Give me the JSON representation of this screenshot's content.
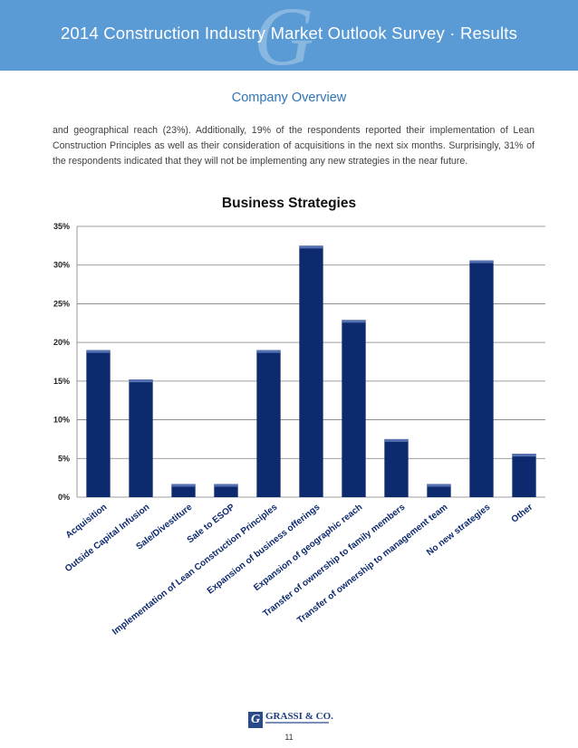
{
  "header": {
    "title": "2014 Construction Industry Market Outlook Survey · Results",
    "watermark": "G"
  },
  "section_title": "Company Overview",
  "paragraph": "and geographical reach (23%).  Additionally, 19% of the respondents reported their implementation of Lean Construction Principles as well as their consideration of acquisitions in the next six months. Surprisingly, 31% of the respondents indicated that they will not be implementing any new strategies in the near future.",
  "chart_data": {
    "type": "bar",
    "title": "Business Strategies",
    "categories": [
      "Acquisition",
      "Outside Capital Infusion",
      "Sale/Divestiture",
      "Sale to ESOP",
      "Implementation of Lean Construction Principles",
      "Expansion of business offerings",
      "Expansion of geographic reach",
      "Transfer of ownership to family members",
      "Transfer of ownership to management team",
      "No new strategies",
      "Other"
    ],
    "values": [
      19,
      15.2,
      1.7,
      1.7,
      19,
      32.5,
      22.9,
      7.5,
      1.7,
      30.6,
      5.6
    ],
    "yticks": [
      "0%",
      "5%",
      "10%",
      "15%",
      "20%",
      "25%",
      "30%",
      "35%"
    ],
    "ylim": [
      0,
      35
    ],
    "grid": true,
    "colors": {
      "bar": "#0d2a6e",
      "bar_top": "#5570b0",
      "grid": "#7f7f7f"
    }
  },
  "footer": {
    "logo_text": "GRASSI & CO.",
    "logo_mark": "G",
    "page_number": "11"
  }
}
